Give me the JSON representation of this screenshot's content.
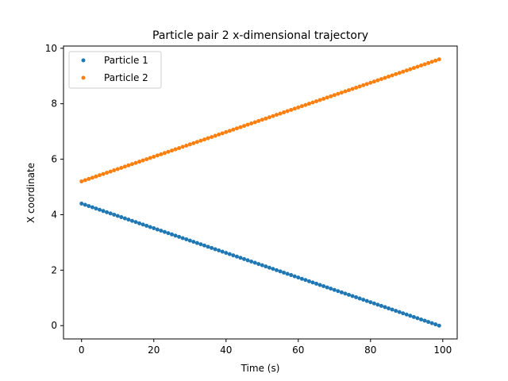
{
  "chart_data": {
    "type": "scatter",
    "title": "Particle pair 2 x-dimensional trajectory",
    "xlabel": "Time (s)",
    "ylabel": "X coordinate",
    "xlim": [
      -5,
      104
    ],
    "ylim": [
      -0.48,
      10.08
    ],
    "xticks": [
      0,
      20,
      40,
      60,
      80,
      100
    ],
    "yticks": [
      0,
      2,
      4,
      6,
      8,
      10
    ],
    "grid": false,
    "legend_position": "upper-left",
    "x_count": 100,
    "series": [
      {
        "name": "Particle 1",
        "color": "#1f77b4",
        "start": 4.4,
        "end": 0.0
      },
      {
        "name": "Particle 2",
        "color": "#ff7f0e",
        "start": 5.2,
        "end": 9.6
      }
    ]
  }
}
